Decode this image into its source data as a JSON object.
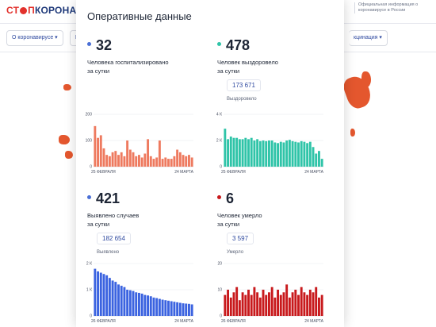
{
  "site": {
    "logo_part1": "СТ",
    "logo_part2": "П",
    "logo_part3": "КОРОНАВИ",
    "official_text": "Официальная информация о коронавирусе в России",
    "nav": [
      {
        "label": "О коронавирусе ▾"
      },
      {
        "label": "М"
      },
      {
        "label": "кцинация ▾"
      }
    ]
  },
  "modal": {
    "title": "Оперативные данные",
    "stats": [
      {
        "key": "hospitalized",
        "value": "32",
        "desc_line1": "Человека госпитализировано",
        "desc_line2": "за сутки",
        "total": "",
        "total_label": "",
        "color": "#4a6fd6"
      },
      {
        "key": "recovered",
        "value": "478",
        "desc_line1": "Человек выздоровело",
        "desc_line2": "за сутки",
        "total": "173 671",
        "total_label": "Выздоровело",
        "color": "#2fc4a8"
      },
      {
        "key": "cases",
        "value": "421",
        "desc_line1": "Выявлено случаев",
        "desc_line2": "за сутки",
        "total": "182 654",
        "total_label": "Выявлено",
        "color": "#4a6fd6"
      },
      {
        "key": "deaths",
        "value": "6",
        "desc_line1": "Человек умерло",
        "desc_line2": "за сутки",
        "total": "3 597",
        "total_label": "Умерло",
        "color": "#c8191c"
      }
    ]
  },
  "chart_data": [
    {
      "type": "bar",
      "series_name": "Госпитализировано",
      "color": "#ee7a5f",
      "ylim": [
        0,
        200
      ],
      "ytick_labels": [
        "200",
        "100",
        "0"
      ],
      "xtick_labels": [
        "25 ФЕВРАЛЯ",
        "24 МАРТА"
      ],
      "values": [
        155,
        110,
        120,
        70,
        45,
        40,
        55,
        60,
        45,
        55,
        40,
        100,
        65,
        55,
        40,
        45,
        35,
        50,
        105,
        40,
        30,
        35,
        100,
        30,
        35,
        30,
        30,
        40,
        65,
        55,
        45,
        40,
        45,
        35
      ]
    },
    {
      "type": "bar",
      "series_name": "Выздоровело",
      "color": "#2fc4a8",
      "ylim": [
        0,
        4000
      ],
      "ytick_labels": [
        "4 К",
        "2 К",
        "0"
      ],
      "xtick_labels": [
        "25 ФЕВРАЛЯ",
        "24 МАРТА"
      ],
      "values": [
        2900,
        2100,
        2300,
        2200,
        2200,
        2100,
        2100,
        2200,
        2100,
        2200,
        2000,
        2100,
        1950,
        2000,
        1950,
        2000,
        2000,
        1850,
        1800,
        1900,
        1850,
        2000,
        2050,
        1950,
        1900,
        1850,
        1950,
        1900,
        1800,
        1900,
        1500,
        1000,
        1200,
        600
      ]
    },
    {
      "type": "bar",
      "series_name": "Выявлено",
      "color": "#3b63e0",
      "ylim": [
        0,
        2000
      ],
      "ytick_labels": [
        "2 К",
        "1 К",
        "0"
      ],
      "xtick_labels": [
        "26 ФЕВРАЛЯ",
        "24 МАРТА"
      ],
      "values": [
        1800,
        1700,
        1650,
        1600,
        1550,
        1450,
        1350,
        1300,
        1200,
        1150,
        1100,
        1000,
        980,
        950,
        900,
        880,
        850,
        800,
        780,
        750,
        700,
        680,
        650,
        620,
        600,
        580,
        560,
        540,
        520,
        500,
        480,
        470,
        460,
        440
      ]
    },
    {
      "type": "bar",
      "series_name": "Умерло",
      "color": "#c8191c",
      "ylim": [
        0,
        20
      ],
      "ytick_labels": [
        "20",
        "10",
        "0"
      ],
      "xtick_labels": [
        "26 ФЕВРАЛЯ",
        "24 МАРТА"
      ],
      "values": [
        8,
        10,
        7,
        9,
        11,
        6,
        9,
        8,
        10,
        8,
        11,
        9,
        7,
        10,
        8,
        9,
        11,
        7,
        10,
        8,
        9,
        12,
        7,
        9,
        10,
        8,
        11,
        9,
        8,
        10,
        9,
        11,
        7,
        8
      ]
    }
  ]
}
